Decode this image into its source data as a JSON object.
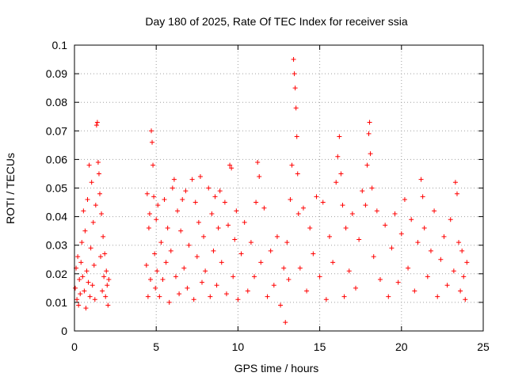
{
  "chart_data": {
    "type": "scatter",
    "title": "Day 180 of 2025, Rate Of TEC Index for receiver ssia",
    "xlabel": "GPS time / hours",
    "ylabel": "ROTI / TECUs",
    "xlim": [
      0,
      25
    ],
    "ylim": [
      0,
      0.1
    ],
    "xticks": [
      0,
      5,
      10,
      15,
      20,
      25
    ],
    "xtick_labels": [
      "0",
      "5",
      "10",
      "15",
      "20",
      "25"
    ],
    "yticks": [
      0,
      0.01,
      0.02,
      0.03,
      0.04,
      0.05,
      0.06,
      0.07,
      0.08,
      0.09,
      0.1
    ],
    "ytick_labels": [
      "0",
      "0.01",
      "0.02",
      "0.03",
      "0.04",
      "0.05",
      "0.06",
      "0.07",
      "0.08",
      "0.09",
      "0.1"
    ],
    "grid": true,
    "marker": "+",
    "marker_color": "#ff0000",
    "series": [
      {
        "values": [
          [
            0.05,
            0.015
          ],
          [
            0.1,
            0.022
          ],
          [
            0.15,
            0.011
          ],
          [
            0.2,
            0.026
          ],
          [
            0.25,
            0.009
          ],
          [
            0.3,
            0.018
          ],
          [
            0.35,
            0.013
          ],
          [
            0.4,
            0.024
          ],
          [
            0.45,
            0.031
          ],
          [
            0.5,
            0.019
          ],
          [
            0.55,
            0.042
          ],
          [
            0.6,
            0.014
          ],
          [
            0.65,
            0.035
          ],
          [
            0.7,
            0.008
          ],
          [
            0.75,
            0.021
          ],
          [
            0.8,
            0.046
          ],
          [
            0.85,
            0.017
          ],
          [
            0.9,
            0.058
          ],
          [
            0.95,
            0.012
          ],
          [
            1.0,
            0.029
          ],
          [
            1.05,
            0.052
          ],
          [
            1.1,
            0.016
          ],
          [
            1.15,
            0.038
          ],
          [
            1.2,
            0.023
          ],
          [
            1.25,
            0.011
          ],
          [
            1.3,
            0.044
          ],
          [
            1.35,
            0.072
          ],
          [
            1.4,
            0.073
          ],
          [
            1.45,
            0.059
          ],
          [
            1.5,
            0.055
          ],
          [
            1.55,
            0.048
          ],
          [
            1.6,
            0.026
          ],
          [
            1.65,
            0.041
          ],
          [
            1.7,
            0.014
          ],
          [
            1.75,
            0.033
          ],
          [
            1.8,
            0.019
          ],
          [
            1.85,
            0.027
          ],
          [
            1.9,
            0.012
          ],
          [
            1.95,
            0.021
          ],
          [
            2.0,
            0.016
          ],
          [
            2.05,
            0.009
          ],
          [
            2.1,
            0.018
          ],
          [
            4.4,
            0.023
          ],
          [
            4.45,
            0.048
          ],
          [
            4.5,
            0.012
          ],
          [
            4.55,
            0.036
          ],
          [
            4.6,
            0.041
          ],
          [
            4.65,
            0.018
          ],
          [
            4.7,
            0.07
          ],
          [
            4.75,
            0.066
          ],
          [
            4.8,
            0.058
          ],
          [
            4.85,
            0.047
          ],
          [
            4.9,
            0.027
          ],
          [
            4.95,
            0.015
          ],
          [
            5.0,
            0.039
          ],
          [
            5.05,
            0.021
          ],
          [
            5.1,
            0.044
          ],
          [
            5.2,
            0.012
          ],
          [
            5.3,
            0.031
          ],
          [
            5.4,
            0.018
          ],
          [
            5.5,
            0.046
          ],
          [
            5.6,
            0.024
          ],
          [
            5.7,
            0.036
          ],
          [
            5.8,
            0.01
          ],
          [
            5.9,
            0.028
          ],
          [
            6.0,
            0.05
          ],
          [
            6.1,
            0.053
          ],
          [
            6.2,
            0.019
          ],
          [
            6.3,
            0.042
          ],
          [
            6.4,
            0.013
          ],
          [
            6.5,
            0.035
          ],
          [
            6.6,
            0.046
          ],
          [
            6.7,
            0.022
          ],
          [
            6.8,
            0.049
          ],
          [
            6.9,
            0.015
          ],
          [
            7.0,
            0.03
          ],
          [
            7.2,
            0.053
          ],
          [
            7.3,
            0.011
          ],
          [
            7.4,
            0.045
          ],
          [
            7.5,
            0.026
          ],
          [
            7.6,
            0.038
          ],
          [
            7.7,
            0.054
          ],
          [
            7.8,
            0.017
          ],
          [
            7.9,
            0.033
          ],
          [
            8.0,
            0.021
          ],
          [
            8.2,
            0.05
          ],
          [
            8.3,
            0.012
          ],
          [
            8.4,
            0.041
          ],
          [
            8.5,
            0.028
          ],
          [
            8.6,
            0.047
          ],
          [
            8.7,
            0.016
          ],
          [
            8.8,
            0.036
          ],
          [
            8.9,
            0.049
          ],
          [
            9.0,
            0.024
          ],
          [
            9.2,
            0.045
          ],
          [
            9.3,
            0.013
          ],
          [
            9.4,
            0.037
          ],
          [
            9.5,
            0.058
          ],
          [
            9.6,
            0.057
          ],
          [
            9.7,
            0.019
          ],
          [
            9.8,
            0.032
          ],
          [
            9.9,
            0.042
          ],
          [
            10.0,
            0.011
          ],
          [
            10.2,
            0.027
          ],
          [
            10.4,
            0.038
          ],
          [
            10.6,
            0.014
          ],
          [
            10.8,
            0.031
          ],
          [
            11.0,
            0.019
          ],
          [
            11.1,
            0.045
          ],
          [
            11.2,
            0.059
          ],
          [
            11.3,
            0.054
          ],
          [
            11.4,
            0.024
          ],
          [
            11.6,
            0.043
          ],
          [
            11.8,
            0.012
          ],
          [
            12.0,
            0.028
          ],
          [
            12.2,
            0.016
          ],
          [
            12.4,
            0.033
          ],
          [
            12.6,
            0.009
          ],
          [
            12.8,
            0.022
          ],
          [
            12.9,
            0.003
          ],
          [
            13.0,
            0.031
          ],
          [
            13.1,
            0.018
          ],
          [
            13.2,
            0.046
          ],
          [
            13.3,
            0.058
          ],
          [
            13.4,
            0.095
          ],
          [
            13.45,
            0.09
          ],
          [
            13.5,
            0.085
          ],
          [
            13.55,
            0.078
          ],
          [
            13.6,
            0.068
          ],
          [
            13.65,
            0.055
          ],
          [
            13.7,
            0.041
          ],
          [
            13.8,
            0.022
          ],
          [
            14.0,
            0.043
          ],
          [
            14.2,
            0.014
          ],
          [
            14.4,
            0.036
          ],
          [
            14.6,
            0.027
          ],
          [
            14.8,
            0.047
          ],
          [
            15.0,
            0.019
          ],
          [
            15.2,
            0.045
          ],
          [
            15.4,
            0.011
          ],
          [
            15.6,
            0.033
          ],
          [
            15.8,
            0.024
          ],
          [
            16.0,
            0.052
          ],
          [
            16.1,
            0.061
          ],
          [
            16.2,
            0.068
          ],
          [
            16.3,
            0.055
          ],
          [
            16.4,
            0.044
          ],
          [
            16.5,
            0.012
          ],
          [
            16.6,
            0.036
          ],
          [
            16.8,
            0.021
          ],
          [
            17.0,
            0.041
          ],
          [
            17.2,
            0.015
          ],
          [
            17.4,
            0.032
          ],
          [
            17.6,
            0.049
          ],
          [
            17.8,
            0.044
          ],
          [
            17.9,
            0.058
          ],
          [
            18.0,
            0.069
          ],
          [
            18.05,
            0.073
          ],
          [
            18.1,
            0.062
          ],
          [
            18.2,
            0.05
          ],
          [
            18.3,
            0.026
          ],
          [
            18.5,
            0.042
          ],
          [
            18.7,
            0.018
          ],
          [
            19.0,
            0.037
          ],
          [
            19.2,
            0.012
          ],
          [
            19.4,
            0.029
          ],
          [
            19.6,
            0.041
          ],
          [
            19.8,
            0.017
          ],
          [
            20.0,
            0.034
          ],
          [
            20.2,
            0.046
          ],
          [
            20.4,
            0.022
          ],
          [
            20.6,
            0.039
          ],
          [
            20.8,
            0.014
          ],
          [
            21.0,
            0.031
          ],
          [
            21.2,
            0.053
          ],
          [
            21.3,
            0.047
          ],
          [
            21.4,
            0.036
          ],
          [
            21.6,
            0.019
          ],
          [
            21.8,
            0.028
          ],
          [
            22.0,
            0.042
          ],
          [
            22.2,
            0.012
          ],
          [
            22.4,
            0.025
          ],
          [
            22.6,
            0.033
          ],
          [
            22.8,
            0.016
          ],
          [
            23.0,
            0.039
          ],
          [
            23.2,
            0.021
          ],
          [
            23.3,
            0.052
          ],
          [
            23.4,
            0.048
          ],
          [
            23.5,
            0.031
          ],
          [
            23.6,
            0.014
          ],
          [
            23.7,
            0.028
          ],
          [
            23.8,
            0.019
          ],
          [
            23.9,
            0.011
          ],
          [
            24.0,
            0.024
          ]
        ]
      }
    ]
  }
}
